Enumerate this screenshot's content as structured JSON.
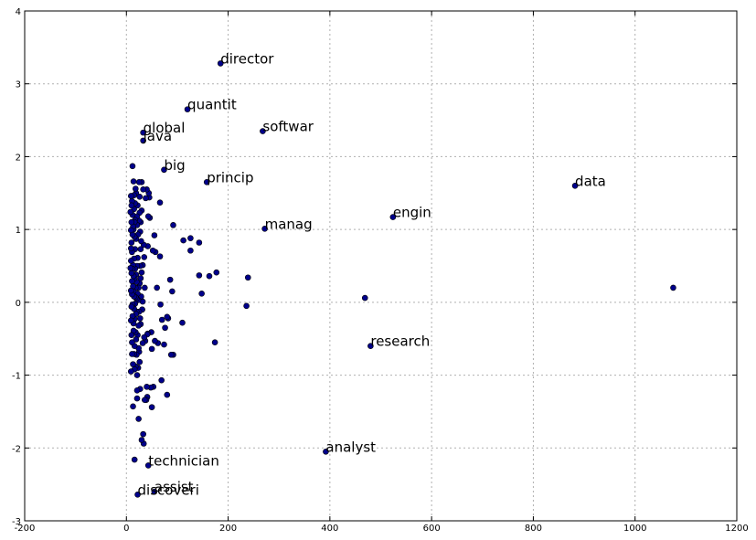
{
  "chart_data": {
    "type": "scatter",
    "title": "",
    "xlabel": "",
    "ylabel": "",
    "xlim": [
      -200,
      1200
    ],
    "ylim": [
      -3,
      4
    ],
    "xticks": [
      -200,
      0,
      200,
      400,
      600,
      800,
      1000,
      1200
    ],
    "yticks": [
      -3,
      -2,
      -1,
      0,
      1,
      2,
      3,
      4
    ],
    "grid": true,
    "point_color": "#00008b",
    "labeled_points": [
      {
        "label": "director",
        "x": 185,
        "y": 3.28
      },
      {
        "label": "quantit",
        "x": 120,
        "y": 2.65
      },
      {
        "label": "softwar",
        "x": 268,
        "y": 2.35
      },
      {
        "label": "global",
        "x": 33,
        "y": 2.33
      },
      {
        "label": "java",
        "x": 33,
        "y": 2.22
      },
      {
        "label": "big",
        "x": 74,
        "y": 1.82
      },
      {
        "label": "princip",
        "x": 158,
        "y": 1.65
      },
      {
        "label": "data",
        "x": 882,
        "y": 1.6
      },
      {
        "label": "engin",
        "x": 524,
        "y": 1.17
      },
      {
        "label": "manag",
        "x": 272,
        "y": 1.01
      },
      {
        "label": "research",
        "x": 480,
        "y": -0.6
      },
      {
        "label": "analyst",
        "x": 392,
        "y": -2.05
      },
      {
        "label": "technician",
        "x": 43,
        "y": -2.24
      },
      {
        "label": "assist",
        "x": 55,
        "y": -2.6
      },
      {
        "label": "discoveri",
        "x": 22,
        "y": -2.64
      }
    ],
    "points": [
      [
        1075,
        0.2
      ],
      [
        469,
        0.06
      ],
      [
        239,
        0.34
      ],
      [
        236,
        -0.05
      ],
      [
        177,
        0.41
      ],
      [
        174,
        -0.55
      ],
      [
        163,
        0.36
      ],
      [
        148,
        0.12
      ],
      [
        143,
        0.37
      ],
      [
        143,
        0.82
      ],
      [
        126,
        0.71
      ],
      [
        126,
        0.88
      ],
      [
        112,
        0.85
      ],
      [
        110,
        -0.28
      ],
      [
        92,
        1.06
      ],
      [
        92,
        -0.72
      ],
      [
        88,
        -0.72
      ],
      [
        90,
        0.15
      ],
      [
        86,
        0.31
      ],
      [
        82,
        -0.22
      ],
      [
        80,
        -0.2
      ],
      [
        80,
        -1.27
      ],
      [
        76,
        -0.35
      ],
      [
        74,
        -0.58
      ],
      [
        70,
        -0.24
      ],
      [
        69,
        -1.07
      ],
      [
        67,
        -0.03
      ],
      [
        66,
        0.63
      ],
      [
        66,
        1.37
      ],
      [
        62,
        -0.56
      ],
      [
        60,
        0.2
      ],
      [
        57,
        0.69
      ],
      [
        56,
        -0.53
      ],
      [
        55,
        0.92
      ],
      [
        53,
        -1.16
      ],
      [
        52,
        0.71
      ],
      [
        50,
        -0.64
      ],
      [
        50,
        -1.44
      ],
      [
        49,
        -0.41
      ],
      [
        48,
        -1.17
      ],
      [
        46,
        1.16
      ],
      [
        45,
        1.44
      ],
      [
        44,
        1.5
      ],
      [
        43,
        1.18
      ],
      [
        42,
        -0.43
      ],
      [
        42,
        0.77
      ],
      [
        41,
        -1.3
      ],
      [
        41,
        -0.44
      ],
      [
        40,
        1.55
      ],
      [
        40,
        -1.16
      ],
      [
        39,
        -1.34
      ],
      [
        38,
        1.43
      ],
      [
        37,
        -0.53
      ],
      [
        36,
        -1.34
      ],
      [
        36,
        0.2
      ],
      [
        35,
        -0.48
      ],
      [
        35,
        0.62
      ],
      [
        34,
        0.79
      ],
      [
        34,
        -1.94
      ],
      [
        33,
        -1.81
      ],
      [
        33,
        1.55
      ],
      [
        32,
        -0.56
      ],
      [
        32,
        0.51
      ],
      [
        32,
        0.01
      ],
      [
        31,
        -0.1
      ],
      [
        31,
        -0.1
      ],
      [
        30,
        1.26
      ],
      [
        30,
        -1.89
      ],
      [
        30,
        0.41
      ],
      [
        30,
        1.65
      ],
      [
        29,
        0.08
      ],
      [
        29,
        0.84
      ],
      [
        28,
        1.1
      ],
      [
        28,
        0.33
      ],
      [
        28,
        -0.3
      ],
      [
        28,
        0.73
      ],
      [
        27,
        -0.22
      ],
      [
        27,
        -1.19
      ],
      [
        27,
        0.5
      ],
      [
        27,
        0.97
      ],
      [
        26,
        -0.82
      ],
      [
        26,
        0.26
      ],
      [
        26,
        1.23
      ],
      [
        26,
        1.45
      ],
      [
        25,
        -0.68
      ],
      [
        25,
        -0.13
      ],
      [
        25,
        1.12
      ],
      [
        25,
        1.65
      ],
      [
        24,
        -0.32
      ],
      [
        24,
        -1.6
      ],
      [
        24,
        -0.63
      ],
      [
        24,
        0.2
      ],
      [
        23,
        0.03
      ],
      [
        23,
        0.93
      ],
      [
        23,
        -0.9
      ],
      [
        22,
        -0.45
      ],
      [
        22,
        0.61
      ],
      [
        22,
        0.12
      ],
      [
        22,
        1.33
      ],
      [
        21,
        0.5
      ],
      [
        21,
        -1.0
      ],
      [
        21,
        -1.32
      ],
      [
        21,
        1.18
      ],
      [
        21,
        1.06
      ],
      [
        21,
        -1.21
      ],
      [
        20,
        -0.72
      ],
      [
        20,
        0.28
      ],
      [
        20,
        -0.13
      ],
      [
        20,
        0.05
      ],
      [
        19,
        0.87
      ],
      [
        19,
        1.5
      ],
      [
        19,
        -0.51
      ],
      [
        19,
        -0.16
      ],
      [
        19,
        0.38
      ],
      [
        18,
        1.56
      ],
      [
        18,
        0.2
      ],
      [
        18,
        0.07
      ],
      [
        18,
        -0.41
      ],
      [
        18,
        -0.88
      ],
      [
        17,
        1.13
      ],
      [
        17,
        -0.02
      ],
      [
        17,
        1.36
      ],
      [
        17,
        0.46
      ],
      [
        17,
        0.73
      ],
      [
        16,
        -0.23
      ],
      [
        16,
        -0.6
      ],
      [
        16,
        0.9
      ],
      [
        16,
        1.1
      ],
      [
        16,
        -0.92
      ],
      [
        16,
        0.33
      ],
      [
        15,
        0.6
      ],
      [
        15,
        -0.09
      ],
      [
        15,
        1.28
      ],
      [
        15,
        0.08
      ],
      [
        15,
        -0.71
      ],
      [
        15,
        1.47
      ],
      [
        14,
        1.66
      ],
      [
        14,
        0.36
      ],
      [
        14,
        -0.29
      ],
      [
        14,
        1.0
      ],
      [
        14,
        0.15
      ],
      [
        14,
        -0.39
      ],
      [
        13,
        0.51
      ],
      [
        13,
        -0.85
      ],
      [
        13,
        1.04
      ],
      [
        13,
        0.22
      ],
      [
        13,
        -1.43
      ],
      [
        12,
        -0.03
      ],
      [
        12,
        1.87
      ],
      [
        12,
        0.46
      ],
      [
        12,
        0.93
      ],
      [
        12,
        -0.19
      ],
      [
        12,
        1.2
      ],
      [
        11,
        0.69
      ],
      [
        11,
        -0.55
      ],
      [
        11,
        0.29
      ],
      [
        11,
        1.39
      ],
      [
        11,
        -0.71
      ],
      [
        11,
        0.11
      ],
      [
        10,
        -0.06
      ],
      [
        10,
        0.82
      ],
      [
        10,
        1.33
      ],
      [
        10,
        -0.45
      ],
      [
        10,
        0.4
      ],
      [
        10,
        1.1
      ],
      [
        16,
        -2.16
      ],
      [
        9,
        0.57
      ],
      [
        9,
        0.16
      ],
      [
        9,
        -0.25
      ],
      [
        9,
        0.99
      ],
      [
        9,
        1.46
      ],
      [
        9,
        -0.95
      ],
      [
        9,
        0.74
      ],
      [
        8,
        0.47
      ],
      [
        8,
        1.24
      ]
    ]
  }
}
